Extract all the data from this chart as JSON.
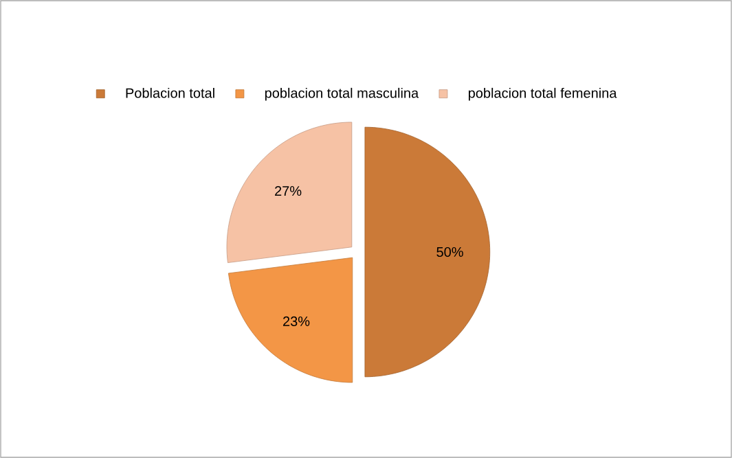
{
  "chart_data": {
    "type": "pie",
    "categories": [
      "Poblacion total",
      "poblacion total masculina",
      "poblacion total femenina"
    ],
    "values": [
      50,
      23,
      27
    ],
    "colors": [
      "#cb7a38",
      "#f39646",
      "#f6c2a5"
    ],
    "value_labels": [
      "50%",
      "23%",
      "27%"
    ],
    "legend": "top"
  }
}
